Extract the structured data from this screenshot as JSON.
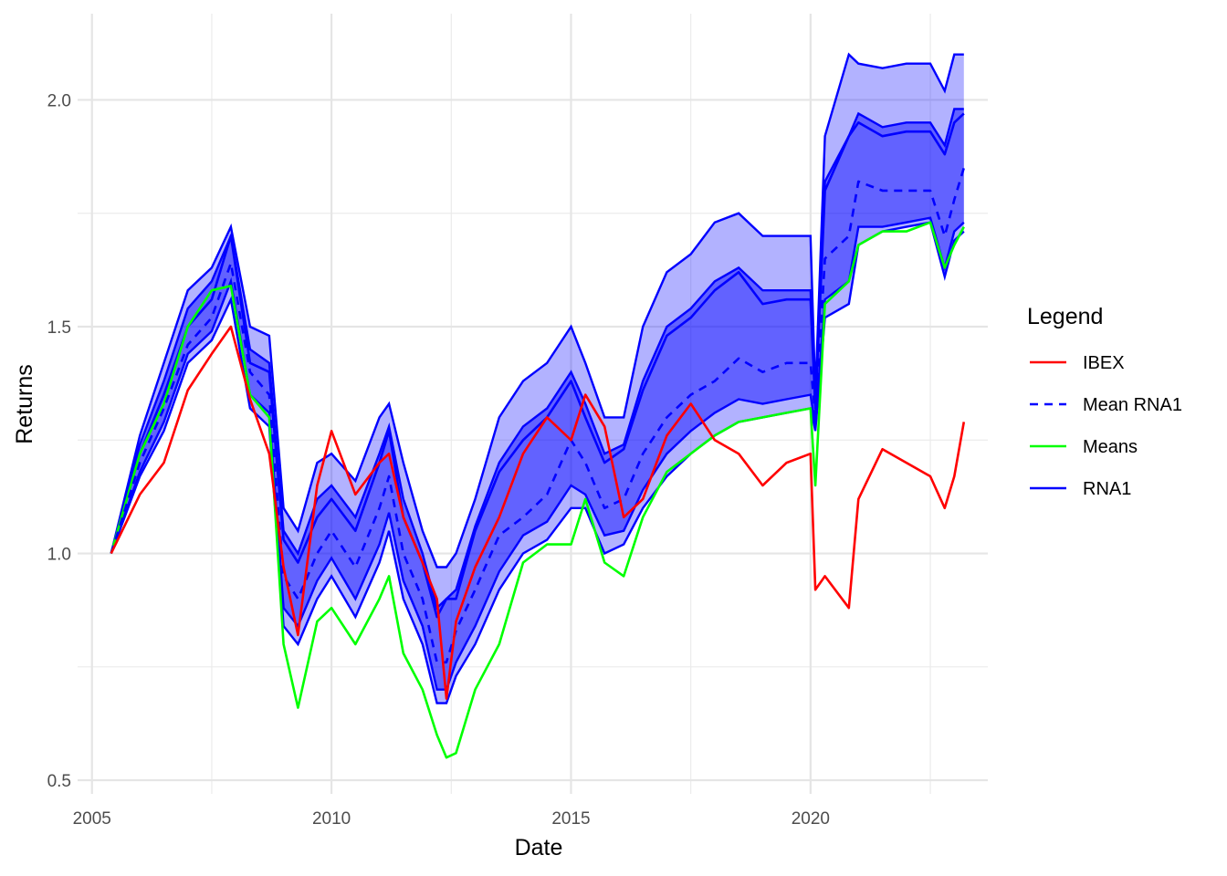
{
  "chart_data": {
    "type": "line",
    "xlabel": "Date",
    "ylabel": "Returns",
    "x_ticks": [
      "2005",
      "2010",
      "2015",
      "2020"
    ],
    "y_ticks": [
      "0.5",
      "1.0",
      "1.5",
      "2.0"
    ],
    "xlim": [
      2004.7,
      2023.7
    ],
    "ylim": [
      0.47,
      2.19
    ],
    "grid": true,
    "legend": {
      "title": "Legend",
      "position": "right",
      "entries": [
        {
          "label": "IBEX",
          "color": "#ff0000",
          "dash": false
        },
        {
          "label": "Mean RNA1",
          "color": "#0000ff",
          "dash": true
        },
        {
          "label": "Means",
          "color": "#00ff00",
          "dash": false
        },
        {
          "label": "RNA1",
          "color": "#0000ff",
          "dash": false
        }
      ]
    },
    "x": [
      2005.4,
      2006.0,
      2006.5,
      2007.0,
      2007.5,
      2007.9,
      2008.3,
      2008.7,
      2009.0,
      2009.3,
      2009.7,
      2010.0,
      2010.5,
      2011.0,
      2011.2,
      2011.5,
      2011.9,
      2012.2,
      2012.4,
      2012.6,
      2013.0,
      2013.5,
      2014.0,
      2014.5,
      2015.0,
      2015.3,
      2015.7,
      2016.1,
      2016.5,
      2017.0,
      2017.5,
      2018.0,
      2018.5,
      2019.0,
      2019.5,
      2020.0,
      2020.1,
      2020.3,
      2020.8,
      2021.0,
      2021.5,
      2022.0,
      2022.5,
      2022.8,
      2023.0,
      2023.2
    ],
    "series": [
      {
        "name": "IBEX",
        "color": "#ff0000",
        "values": [
          1.0,
          1.13,
          1.2,
          1.36,
          1.44,
          1.5,
          1.34,
          1.22,
          0.97,
          0.82,
          1.15,
          1.27,
          1.13,
          1.2,
          1.22,
          1.08,
          0.98,
          0.9,
          0.68,
          0.85,
          0.97,
          1.08,
          1.22,
          1.3,
          1.25,
          1.35,
          1.28,
          1.08,
          1.12,
          1.26,
          1.33,
          1.25,
          1.22,
          1.15,
          1.2,
          1.22,
          0.92,
          0.95,
          0.88,
          1.12,
          1.23,
          1.2,
          1.17,
          1.1,
          1.17,
          1.29
        ]
      },
      {
        "name": "Means",
        "color": "#00ff00",
        "values": [
          1.0,
          1.22,
          1.33,
          1.5,
          1.58,
          1.59,
          1.35,
          1.3,
          0.8,
          0.66,
          0.85,
          0.88,
          0.8,
          0.9,
          0.95,
          0.78,
          0.7,
          0.6,
          0.55,
          0.56,
          0.7,
          0.8,
          0.98,
          1.02,
          1.02,
          1.12,
          0.98,
          0.95,
          1.08,
          1.18,
          1.22,
          1.26,
          1.29,
          1.3,
          1.31,
          1.32,
          1.15,
          1.55,
          1.6,
          1.68,
          1.71,
          1.71,
          1.73,
          1.63,
          1.68,
          1.72
        ]
      },
      {
        "name": "Mean RNA1",
        "color": "#0000ff",
        "values": [
          1.0,
          1.2,
          1.32,
          1.46,
          1.52,
          1.64,
          1.4,
          1.35,
          0.95,
          0.9,
          1.0,
          1.05,
          0.97,
          1.1,
          1.17,
          1.0,
          0.9,
          0.76,
          0.76,
          0.83,
          0.92,
          1.04,
          1.08,
          1.13,
          1.25,
          1.2,
          1.1,
          1.12,
          1.22,
          1.3,
          1.35,
          1.38,
          1.43,
          1.4,
          1.42,
          1.42,
          1.3,
          1.65,
          1.7,
          1.82,
          1.8,
          1.8,
          1.8,
          1.7,
          1.78,
          1.85
        ]
      },
      {
        "name": "RNA1",
        "color": "#0000ff",
        "values": [
          1.0,
          1.22,
          1.35,
          1.5,
          1.56,
          1.7,
          1.42,
          1.4,
          1.03,
          0.98,
          1.08,
          1.12,
          1.05,
          1.2,
          1.27,
          1.08,
          0.98,
          0.86,
          0.9,
          0.9,
          1.05,
          1.18,
          1.25,
          1.3,
          1.38,
          1.3,
          1.2,
          1.23,
          1.36,
          1.48,
          1.52,
          1.58,
          1.62,
          1.55,
          1.56,
          1.56,
          1.32,
          1.8,
          1.92,
          1.95,
          1.92,
          1.93,
          1.93,
          1.88,
          1.95,
          1.97
        ]
      }
    ],
    "bands": [
      {
        "series": "RNA1",
        "fill": "#0000ff",
        "opacity": 0.3,
        "lower": [
          1.0,
          1.17,
          1.27,
          1.42,
          1.47,
          1.56,
          1.32,
          1.28,
          0.84,
          0.8,
          0.9,
          0.95,
          0.86,
          0.98,
          1.05,
          0.9,
          0.8,
          0.67,
          0.67,
          0.73,
          0.8,
          0.92,
          1.0,
          1.03,
          1.1,
          1.1,
          1.0,
          1.02,
          1.1,
          1.17,
          1.22,
          1.26,
          1.29,
          1.3,
          1.31,
          1.32,
          1.27,
          1.52,
          1.55,
          1.68,
          1.71,
          1.72,
          1.73,
          1.61,
          1.69,
          1.71
        ],
        "upper": [
          1.0,
          1.26,
          1.42,
          1.58,
          1.63,
          1.72,
          1.5,
          1.48,
          1.1,
          1.05,
          1.2,
          1.22,
          1.16,
          1.3,
          1.33,
          1.2,
          1.05,
          0.97,
          0.97,
          1.0,
          1.12,
          1.3,
          1.38,
          1.42,
          1.5,
          1.42,
          1.3,
          1.3,
          1.5,
          1.62,
          1.66,
          1.73,
          1.75,
          1.7,
          1.7,
          1.7,
          1.35,
          1.92,
          2.1,
          2.08,
          2.07,
          2.08,
          2.08,
          2.02,
          2.1,
          2.1
        ]
      },
      {
        "series": "RNA1",
        "fill": "#0000ff",
        "opacity": 0.45,
        "lower": [
          1.0,
          1.18,
          1.29,
          1.44,
          1.49,
          1.6,
          1.35,
          1.31,
          0.88,
          0.84,
          0.94,
          0.99,
          0.9,
          1.02,
          1.09,
          0.94,
          0.84,
          0.7,
          0.7,
          0.76,
          0.84,
          0.96,
          1.04,
          1.07,
          1.15,
          1.13,
          1.04,
          1.05,
          1.14,
          1.22,
          1.27,
          1.31,
          1.34,
          1.33,
          1.34,
          1.35,
          1.28,
          1.56,
          1.6,
          1.72,
          1.72,
          1.73,
          1.74,
          1.63,
          1.71,
          1.73
        ],
        "upper": [
          1.0,
          1.24,
          1.38,
          1.54,
          1.6,
          1.7,
          1.45,
          1.42,
          1.05,
          1.0,
          1.12,
          1.15,
          1.08,
          1.22,
          1.28,
          1.12,
          1.0,
          0.88,
          0.9,
          0.92,
          1.06,
          1.2,
          1.28,
          1.32,
          1.4,
          1.33,
          1.22,
          1.24,
          1.38,
          1.5,
          1.54,
          1.6,
          1.63,
          1.58,
          1.58,
          1.58,
          1.33,
          1.82,
          1.92,
          1.97,
          1.94,
          1.95,
          1.95,
          1.9,
          1.98,
          1.98
        ]
      }
    ]
  }
}
